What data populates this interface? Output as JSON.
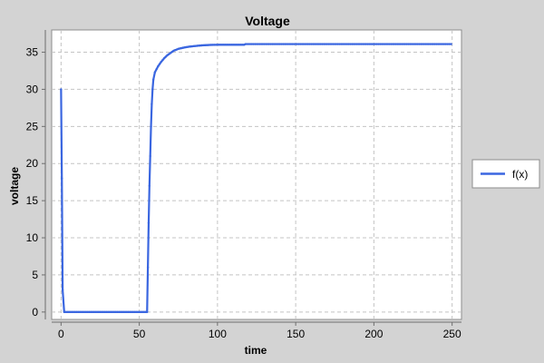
{
  "colors": {
    "background": "#d3d3d3",
    "plot_background": "#ffffff",
    "series_line": "#3a66e0",
    "grid": "#c4c4c4",
    "axis": "#6e6e6e",
    "text": "#000000"
  },
  "chart_data": {
    "type": "line",
    "title": "Voltage",
    "xlabel": "time",
    "ylabel": "voltage",
    "xlim": [
      -6,
      256
    ],
    "ylim": [
      -1,
      38
    ],
    "xticks": [
      0,
      50,
      100,
      150,
      200,
      250
    ],
    "yticks": [
      0,
      5,
      10,
      15,
      20,
      25,
      30,
      35
    ],
    "xtick_labels": [
      "0",
      "50",
      "100",
      "150",
      "200",
      "250"
    ],
    "ytick_labels": [
      "0",
      "5",
      "10",
      "15",
      "20",
      "25",
      "30",
      "35"
    ],
    "grid": true,
    "legend": {
      "position": "right",
      "entries": [
        "f(x)"
      ]
    },
    "series": [
      {
        "name": "f(x)",
        "x": [
          0,
          0.5,
          1,
          2,
          55,
          55.5,
          56,
          56.5,
          57,
          57.5,
          58,
          58.5,
          59,
          60,
          62,
          64,
          66,
          68,
          70,
          72,
          75,
          78,
          81,
          85,
          90,
          95,
          100,
          117,
          118,
          150,
          200,
          250
        ],
        "y": [
          30,
          18,
          3,
          0,
          0,
          6,
          12,
          17,
          21,
          25,
          28,
          30,
          31.3,
          32.3,
          33.1,
          33.7,
          34.2,
          34.6,
          34.9,
          35.2,
          35.45,
          35.6,
          35.72,
          35.82,
          35.92,
          35.98,
          36.0,
          36.0,
          36.1,
          36.1,
          36.1,
          36.1
        ]
      }
    ]
  }
}
